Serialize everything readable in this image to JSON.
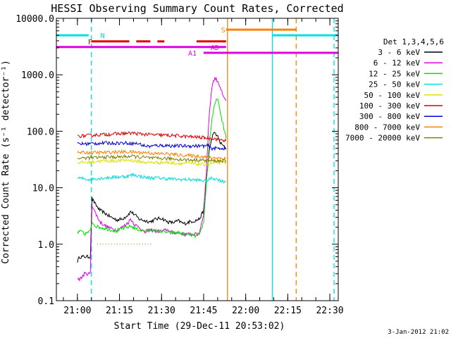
{
  "chart_data": {
    "type": "line",
    "title": "HESSI Observing Summary Count Rates, Corrected",
    "xlabel": "Start Time (29-Dec-11 20:53:02)",
    "ylabel": "Corrected Count Rate (s⁻¹ detector⁻¹)",
    "footer": "3-Jan-2012 21:02",
    "y_scale": "log",
    "ylim": [
      0.1,
      10000
    ],
    "xlim_minutes": [
      -7.5,
      93
    ],
    "x_ticks": [
      {
        "t": 0,
        "label": "21:00"
      },
      {
        "t": 15,
        "label": "21:15"
      },
      {
        "t": 30,
        "label": "21:30"
      },
      {
        "t": 45,
        "label": "21:45"
      },
      {
        "t": 60,
        "label": "22:00"
      },
      {
        "t": 75,
        "label": "22:15"
      },
      {
        "t": 90,
        "label": "22:30"
      }
    ],
    "y_ticks": [
      {
        "v": 0.1,
        "label": "0.1"
      },
      {
        "v": 1,
        "label": "1.0"
      },
      {
        "v": 10,
        "label": "10.0"
      },
      {
        "v": 100,
        "label": "100.0"
      },
      {
        "v": 1000,
        "label": "1000.0"
      },
      {
        "v": 10000,
        "label": "10000.0"
      }
    ],
    "legend": {
      "title": "Det 1,3,4,5,6",
      "placement": "right",
      "items": [
        {
          "label": "3 - 6 keV",
          "color": "#000000"
        },
        {
          "label": "6 - 12 keV",
          "color": "#e000e0"
        },
        {
          "label": "12 - 25 keV",
          "color": "#00e000"
        },
        {
          "label": "25 - 50 keV",
          "color": "#00e0e0"
        },
        {
          "label": "50 - 100 keV",
          "color": "#e0e000"
        },
        {
          "label": "100 - 300 keV",
          "color": "#e00000"
        },
        {
          "label": "300 - 800 keV",
          "color": "#0000e0"
        },
        {
          "label": "800 - 7000 keV",
          "color": "#ff8000"
        },
        {
          "label": "7000 - 20000 keV",
          "color": "#808000"
        }
      ]
    },
    "series": [
      {
        "name": "3 - 6 keV",
        "color": "#000000",
        "points": [
          [
            0,
            0.5
          ],
          [
            0.8,
            0.6
          ],
          [
            2.5,
            0.6
          ],
          [
            4.6,
            0.6
          ],
          [
            5.2,
            6.5
          ],
          [
            6.5,
            5
          ],
          [
            8,
            4
          ],
          [
            10,
            3.5
          ],
          [
            12,
            3
          ],
          [
            14,
            2.7
          ],
          [
            16,
            2.8
          ],
          [
            18,
            3.3
          ],
          [
            19,
            3.8
          ],
          [
            20.5,
            3.3
          ],
          [
            22,
            2.8
          ],
          [
            24,
            2.6
          ],
          [
            26,
            2.5
          ],
          [
            28,
            2.8
          ],
          [
            30,
            2.9
          ],
          [
            32,
            2.5
          ],
          [
            34,
            2.4
          ],
          [
            36,
            2.6
          ],
          [
            38,
            2.3
          ],
          [
            40,
            2.5
          ],
          [
            42,
            2.6
          ],
          [
            43.5,
            2.8
          ],
          [
            45,
            4
          ],
          [
            46,
            14
          ],
          [
            47,
            45
          ],
          [
            48,
            80
          ],
          [
            49,
            95
          ],
          [
            50,
            80
          ],
          [
            51,
            62
          ],
          [
            52,
            55
          ],
          [
            53,
            48
          ]
        ]
      },
      {
        "name": "6 - 12 keV",
        "color": "#e000e0",
        "points": [
          [
            0,
            0.25
          ],
          [
            1,
            0.24
          ],
          [
            2.5,
            0.3
          ],
          [
            4.6,
            0.3
          ],
          [
            5.2,
            5
          ],
          [
            6.5,
            3.5
          ],
          [
            8,
            2.5
          ],
          [
            10,
            2.1
          ],
          [
            12,
            1.9
          ],
          [
            14,
            1.8
          ],
          [
            16,
            2
          ],
          [
            18,
            2.4
          ],
          [
            19,
            2.8
          ],
          [
            20.5,
            2.2
          ],
          [
            22,
            2
          ],
          [
            24,
            1.6
          ],
          [
            26,
            1.8
          ],
          [
            28,
            1.7
          ],
          [
            30,
            1.7
          ],
          [
            32,
            1.8
          ],
          [
            34,
            1.6
          ],
          [
            36,
            1.6
          ],
          [
            38,
            1.5
          ],
          [
            40,
            1.5
          ],
          [
            42,
            1.5
          ],
          [
            43.5,
            1.6
          ],
          [
            45,
            3.5
          ],
          [
            46,
            20
          ],
          [
            47,
            200
          ],
          [
            48,
            650
          ],
          [
            49,
            880
          ],
          [
            50,
            780
          ],
          [
            51,
            600
          ],
          [
            52,
            400
          ],
          [
            53,
            350
          ]
        ]
      },
      {
        "name": "12 - 25 keV",
        "color": "#00e000",
        "points": [
          [
            0,
            1.6
          ],
          [
            1.5,
            1.7
          ],
          [
            2.5,
            1.5
          ],
          [
            4.6,
            1.7
          ],
          [
            5.2,
            2.5
          ],
          [
            6.5,
            2.1
          ],
          [
            8,
            2
          ],
          [
            10,
            1.9
          ],
          [
            12,
            1.8
          ],
          [
            14,
            1.7
          ],
          [
            16,
            1.9
          ],
          [
            18,
            2
          ],
          [
            19,
            2.1
          ],
          [
            20.5,
            1.9
          ],
          [
            22,
            1.8
          ],
          [
            24,
            1.7
          ],
          [
            26,
            1.8
          ],
          [
            28,
            1.7
          ],
          [
            30,
            1.7
          ],
          [
            32,
            1.6
          ],
          [
            34,
            1.6
          ],
          [
            36,
            1.6
          ],
          [
            38,
            1.5
          ],
          [
            40,
            1.5
          ],
          [
            42,
            1.4
          ],
          [
            43.5,
            1.4
          ],
          [
            45,
            2.5
          ],
          [
            46,
            12
          ],
          [
            47,
            60
          ],
          [
            48,
            170
          ],
          [
            49,
            300
          ],
          [
            50,
            400
          ],
          [
            51,
            200
          ],
          [
            52,
            130
          ],
          [
            53,
            75
          ]
        ]
      },
      {
        "name": "25 - 50 keV",
        "color": "#00e0e0",
        "points": [
          [
            0,
            15
          ],
          [
            4,
            14
          ],
          [
            6,
            14.5
          ],
          [
            10,
            15
          ],
          [
            14,
            15.5
          ],
          [
            18,
            16
          ],
          [
            20,
            17
          ],
          [
            22,
            16
          ],
          [
            25,
            15
          ],
          [
            28,
            15
          ],
          [
            32,
            14.5
          ],
          [
            36,
            14
          ],
          [
            40,
            14
          ],
          [
            44,
            13.5
          ],
          [
            46,
            13
          ],
          [
            48,
            15
          ],
          [
            50,
            14
          ],
          [
            52,
            13
          ],
          [
            53,
            13
          ]
        ]
      },
      {
        "name": "50 - 100 keV",
        "color": "#e0e000",
        "points": [
          [
            0,
            28
          ],
          [
            4,
            28
          ],
          [
            6,
            29
          ],
          [
            10,
            30
          ],
          [
            14,
            30
          ],
          [
            18,
            31
          ],
          [
            20,
            30
          ],
          [
            22,
            29
          ],
          [
            25,
            28
          ],
          [
            28,
            28
          ],
          [
            32,
            28
          ],
          [
            36,
            27
          ],
          [
            40,
            27
          ],
          [
            44,
            26
          ],
          [
            46,
            26
          ],
          [
            48,
            27
          ],
          [
            50,
            28
          ],
          [
            52,
            28
          ],
          [
            53,
            28
          ]
        ]
      },
      {
        "name": "100 - 300 keV",
        "color": "#e00000",
        "points": [
          [
            0,
            82
          ],
          [
            4,
            84
          ],
          [
            6,
            86
          ],
          [
            10,
            88
          ],
          [
            14,
            90
          ],
          [
            18,
            92
          ],
          [
            20,
            93
          ],
          [
            22,
            90
          ],
          [
            25,
            88
          ],
          [
            28,
            86
          ],
          [
            32,
            85
          ],
          [
            36,
            83
          ],
          [
            40,
            80
          ],
          [
            44,
            78
          ],
          [
            46,
            76
          ],
          [
            48,
            75
          ],
          [
            50,
            72
          ],
          [
            52,
            70
          ],
          [
            53,
            68
          ]
        ]
      },
      {
        "name": "300 - 800 keV",
        "color": "#0000e0",
        "points": [
          [
            0,
            60
          ],
          [
            4,
            60
          ],
          [
            6,
            61
          ],
          [
            10,
            62
          ],
          [
            14,
            62
          ],
          [
            18,
            62
          ],
          [
            20,
            61
          ],
          [
            22,
            60
          ],
          [
            24,
            55
          ],
          [
            26,
            54
          ],
          [
            28,
            56
          ],
          [
            30,
            56
          ],
          [
            32,
            56
          ],
          [
            34,
            55
          ],
          [
            36,
            55
          ],
          [
            40,
            55
          ],
          [
            44,
            55
          ],
          [
            46,
            55
          ],
          [
            47,
            55
          ],
          [
            47.5,
            50
          ],
          [
            50,
            50
          ],
          [
            53,
            50
          ]
        ]
      },
      {
        "name": "800 - 7000 keV",
        "color": "#ff8000",
        "points": [
          [
            0,
            42
          ],
          [
            4,
            42
          ],
          [
            6,
            42
          ],
          [
            10,
            42
          ],
          [
            14,
            43
          ],
          [
            18,
            43
          ],
          [
            20,
            43
          ],
          [
            22,
            42
          ],
          [
            25,
            42
          ],
          [
            28,
            40
          ],
          [
            32,
            40
          ],
          [
            36,
            38
          ],
          [
            40,
            37
          ],
          [
            44,
            36
          ],
          [
            46,
            35
          ],
          [
            48,
            34
          ],
          [
            50,
            34
          ],
          [
            52,
            33
          ],
          [
            53,
            33
          ]
        ]
      },
      {
        "name": "7000 - 20000 keV",
        "color": "#808000",
        "points": [
          [
            0,
            33
          ],
          [
            4,
            34
          ],
          [
            6,
            34
          ],
          [
            10,
            35
          ],
          [
            14,
            35
          ],
          [
            18,
            36
          ],
          [
            20,
            36
          ],
          [
            22,
            35
          ],
          [
            25,
            34
          ],
          [
            28,
            33
          ],
          [
            32,
            33
          ],
          [
            36,
            32
          ],
          [
            40,
            31
          ],
          [
            44,
            31
          ],
          [
            46,
            30
          ],
          [
            48,
            30
          ],
          [
            50,
            30
          ],
          [
            52,
            30
          ],
          [
            53,
            30
          ]
        ]
      }
    ],
    "dotted_segment": {
      "color": "#808000",
      "t_start": 7,
      "t_end": 27,
      "value": 1.0
    },
    "markers": [
      {
        "label": "N",
        "label_t": 9,
        "color": "#00e0e0",
        "value": 5000,
        "segments": [
          [
            -7.5,
            4
          ],
          [
            69.5,
            93
          ]
        ]
      },
      {
        "label": "F",
        "label_t": 4.5,
        "color": "#e00000",
        "value": 3900,
        "segments": [
          [
            5,
            18.5
          ],
          [
            21,
            26
          ],
          [
            28.5,
            31
          ],
          [
            42.5,
            53
          ]
        ]
      },
      {
        "label": "S",
        "label_t": 52,
        "color": "#ff8000",
        "value": 6300,
        "segments": [
          [
            53,
            78
          ]
        ]
      },
      {
        "label": "AD",
        "label_t": 49,
        "color": "#e000e0",
        "value": 3100,
        "segments": [
          [
            -7.5,
            53
          ]
        ]
      },
      {
        "label": "A1",
        "label_t": 41,
        "color": "#e000e0",
        "value": 2450,
        "segments": [
          [
            45,
            93
          ]
        ]
      }
    ],
    "vertical_lines": [
      {
        "t": 5,
        "color": "#00e0e0",
        "style": "dashed"
      },
      {
        "t": 53.5,
        "color": "#ff8000",
        "style": "solid"
      },
      {
        "t": 69.5,
        "color": "#00e0e0",
        "style": "solid"
      },
      {
        "t": 78,
        "color": "#ff8000",
        "style": "dashed"
      },
      {
        "t": 91.5,
        "color": "#00e0e0",
        "style": "dashed"
      }
    ],
    "grid": false
  }
}
